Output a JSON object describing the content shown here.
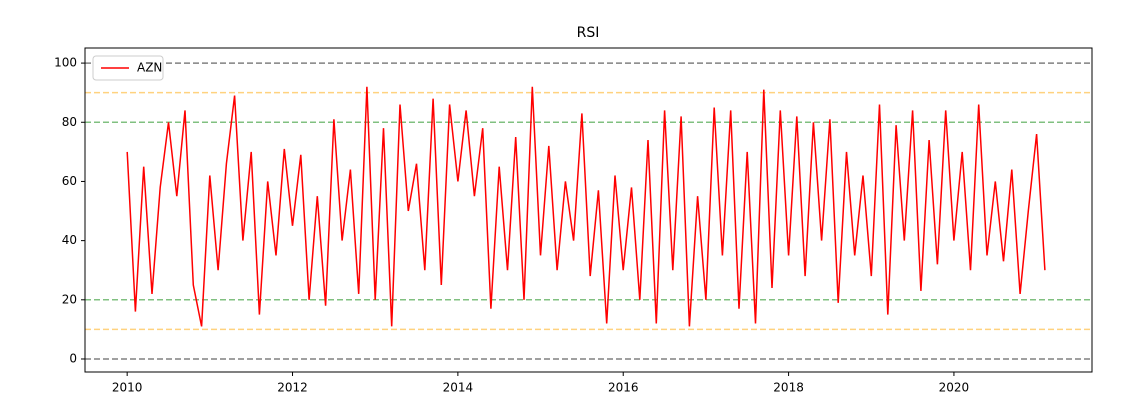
{
  "chart_data": {
    "type": "line",
    "title": "RSI",
    "x": [
      2010.0,
      2010.1,
      2010.2,
      2010.3,
      2010.4,
      2010.5,
      2010.6,
      2010.7,
      2010.8,
      2010.9,
      2011.0,
      2011.1,
      2011.2,
      2011.3,
      2011.4,
      2011.5,
      2011.6,
      2011.7,
      2011.8,
      2011.9,
      2012.0,
      2012.1,
      2012.2,
      2012.3,
      2012.4,
      2012.5,
      2012.6,
      2012.7,
      2012.8,
      2012.9,
      2013.0,
      2013.1,
      2013.2,
      2013.3,
      2013.4,
      2013.5,
      2013.6,
      2013.7,
      2013.8,
      2013.9,
      2014.0,
      2014.1,
      2014.2,
      2014.3,
      2014.4,
      2014.5,
      2014.6,
      2014.7,
      2014.8,
      2014.9,
      2015.0,
      2015.1,
      2015.2,
      2015.3,
      2015.4,
      2015.5,
      2015.6,
      2015.7,
      2015.8,
      2015.9,
      2016.0,
      2016.1,
      2016.2,
      2016.3,
      2016.4,
      2016.5,
      2016.6,
      2016.7,
      2016.8,
      2016.9,
      2017.0,
      2017.1,
      2017.2,
      2017.3,
      2017.4,
      2017.5,
      2017.6,
      2017.7,
      2017.8,
      2017.9,
      2018.0,
      2018.1,
      2018.2,
      2018.3,
      2018.4,
      2018.5,
      2018.6,
      2018.7,
      2018.8,
      2018.9,
      2019.0,
      2019.1,
      2019.2,
      2019.3,
      2019.4,
      2019.5,
      2019.6,
      2019.7,
      2019.8,
      2019.9,
      2020.0,
      2020.1,
      2020.2,
      2020.3,
      2020.4,
      2020.5,
      2020.6,
      2020.7,
      2020.8,
      2020.9,
      2021.0,
      2021.1
    ],
    "series": [
      {
        "name": "AZN",
        "color": "#ff0000",
        "values": [
          70,
          16,
          65,
          22,
          58,
          80,
          55,
          84,
          25,
          11,
          62,
          30,
          66,
          89,
          40,
          70,
          15,
          60,
          35,
          71,
          45,
          69,
          20,
          55,
          18,
          81,
          40,
          64,
          22,
          92,
          20,
          78,
          11,
          86,
          50,
          66,
          30,
          88,
          25,
          86,
          60,
          84,
          55,
          78,
          17,
          65,
          30,
          75,
          20,
          92,
          35,
          72,
          30,
          60,
          40,
          83,
          28,
          57,
          12,
          62,
          30,
          58,
          20,
          74,
          12,
          84,
          30,
          82,
          11,
          55,
          20,
          85,
          35,
          84,
          17,
          70,
          12,
          91,
          24,
          84,
          35,
          82,
          28,
          80,
          40,
          81,
          19,
          70,
          35,
          62,
          28,
          86,
          15,
          79,
          40,
          84,
          23,
          74,
          32,
          84,
          40,
          70,
          30,
          86,
          35,
          60,
          33,
          64,
          22,
          50,
          76,
          30
        ]
      }
    ],
    "hlines": [
      {
        "value": 0,
        "color": "#808080"
      },
      {
        "value": 100,
        "color": "#808080"
      },
      {
        "value": 10,
        "color": "#ffd27f"
      },
      {
        "value": 90,
        "color": "#ffd27f"
      },
      {
        "value": 20,
        "color": "#80c080"
      },
      {
        "value": 80,
        "color": "#80c080"
      }
    ],
    "xlim": [
      2009.49,
      2021.67
    ],
    "xticks": [
      2010,
      2012,
      2014,
      2016,
      2018,
      2020
    ],
    "ylim": [
      -4.4,
      105.1
    ],
    "yticks": [
      0,
      20,
      40,
      60,
      80,
      100
    ],
    "legend": "upper left"
  }
}
